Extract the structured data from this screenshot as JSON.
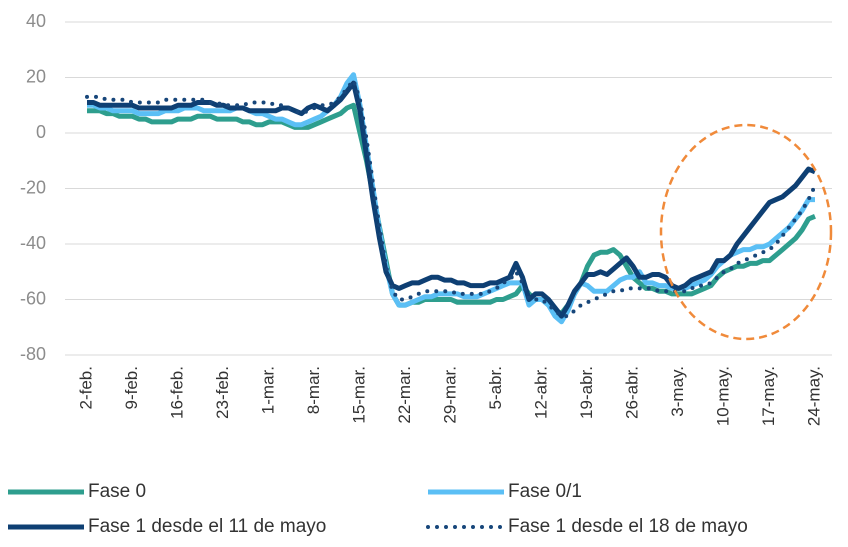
{
  "chart_data": {
    "type": "line",
    "categories": [
      "2-feb.",
      null,
      null,
      null,
      null,
      null,
      null,
      "9-feb.",
      null,
      null,
      null,
      null,
      null,
      null,
      "16-feb.",
      null,
      null,
      null,
      null,
      null,
      null,
      "23-feb.",
      null,
      null,
      null,
      null,
      null,
      null,
      "1-mar.",
      null,
      null,
      null,
      null,
      null,
      null,
      "8-mar.",
      null,
      null,
      null,
      null,
      null,
      null,
      "15-mar.",
      null,
      null,
      null,
      null,
      null,
      null,
      "22-mar.",
      null,
      null,
      null,
      null,
      null,
      null,
      "29-mar.",
      null,
      null,
      null,
      null,
      null,
      null,
      "5-abr.",
      null,
      null,
      null,
      null,
      null,
      null,
      "12-abr.",
      null,
      null,
      null,
      null,
      null,
      null,
      "19-abr.",
      null,
      null,
      null,
      null,
      null,
      null,
      "26-abr.",
      null,
      null,
      null,
      null,
      null,
      null,
      "3-may.",
      null,
      null,
      null,
      null,
      null,
      null,
      "10-may.",
      null,
      null,
      null,
      null,
      null,
      null,
      "17-may.",
      null,
      null,
      null,
      null,
      null,
      null,
      "24-may."
    ],
    "series": [
      {
        "name": "Fase 0",
        "color": "#2e9e8e",
        "style": "solid",
        "values": [
          8,
          8,
          8,
          7,
          7,
          6,
          6,
          6,
          5,
          5,
          4,
          4,
          4,
          4,
          5,
          5,
          5,
          6,
          6,
          6,
          5,
          5,
          5,
          5,
          4,
          4,
          3,
          3,
          4,
          4,
          4,
          3,
          2,
          2,
          2,
          3,
          4,
          5,
          6,
          7,
          9,
          10,
          0,
          -10,
          -22,
          -34,
          -46,
          -58,
          -62,
          -62,
          -61,
          -61,
          -60,
          -60,
          -60,
          -60,
          -60,
          -61,
          -61,
          -61,
          -61,
          -61,
          -61,
          -60,
          -60,
          -59,
          -58,
          -55,
          -58,
          -60,
          -60,
          -62,
          -64,
          -65,
          -62,
          -58,
          -54,
          -48,
          -44,
          -43,
          -43,
          -42,
          -44,
          -48,
          -52,
          -54,
          -56,
          -56,
          -57,
          -57,
          -58,
          -58,
          -58,
          -58,
          -57,
          -56,
          -55,
          -52,
          -50,
          -49,
          -48,
          -48,
          -47,
          -47,
          -46,
          -46,
          -44,
          -42,
          -40,
          -38,
          -35,
          -31,
          -30
        ]
      },
      {
        "name": "Fase 0/1",
        "color": "#5bbff5",
        "style": "solid",
        "values": [
          10,
          10,
          9,
          9,
          8,
          8,
          8,
          8,
          7,
          7,
          7,
          7,
          8,
          8,
          8,
          9,
          9,
          9,
          8,
          8,
          8,
          8,
          8,
          9,
          9,
          8,
          7,
          7,
          6,
          5,
          5,
          4,
          3,
          3,
          4,
          5,
          6,
          8,
          10,
          13,
          18,
          21,
          10,
          -5,
          -20,
          -35,
          -48,
          -58,
          -62,
          -62,
          -61,
          -60,
          -59,
          -59,
          -58,
          -58,
          -58,
          -58,
          -59,
          -59,
          -59,
          -58,
          -57,
          -56,
          -55,
          -54,
          -54,
          -54,
          -62,
          -60,
          -60,
          -62,
          -66,
          -68,
          -64,
          -58,
          -54,
          -55,
          -57,
          -57,
          -57,
          -55,
          -53,
          -52,
          -52,
          -50,
          -54,
          -54,
          -55,
          -55,
          -56,
          -56,
          -56,
          -55,
          -54,
          -53,
          -51,
          -48,
          -46,
          -44,
          -43,
          -42,
          -42,
          -41,
          -41,
          -40,
          -38,
          -36,
          -34,
          -31,
          -28,
          -24,
          -24
        ]
      },
      {
        "name": "Fase 1 desde el 11 de mayo",
        "color": "#0e3f73",
        "style": "solid",
        "values": [
          11,
          11,
          10,
          10,
          10,
          10,
          10,
          10,
          9,
          9,
          9,
          9,
          9,
          9,
          10,
          10,
          10,
          11,
          11,
          11,
          10,
          10,
          9,
          9,
          9,
          8,
          8,
          8,
          8,
          8,
          9,
          9,
          8,
          7,
          9,
          10,
          9,
          8,
          10,
          12,
          15,
          18,
          8,
          -8,
          -24,
          -38,
          -50,
          -55,
          -56,
          -55,
          -54,
          -54,
          -53,
          -52,
          -52,
          -53,
          -53,
          -54,
          -54,
          -55,
          -55,
          -55,
          -54,
          -54,
          -53,
          -52,
          -47,
          -52,
          -60,
          -58,
          -58,
          -60,
          -63,
          -66,
          -62,
          -57,
          -54,
          -51,
          -51,
          -50,
          -51,
          -49,
          -47,
          -45,
          -48,
          -52,
          -52,
          -51,
          -51,
          -52,
          -55,
          -56,
          -55,
          -53,
          -52,
          -51,
          -50,
          -46,
          -46,
          -44,
          -40,
          -37,
          -34,
          -31,
          -28,
          -25,
          -24,
          -23,
          -21,
          -19,
          -16,
          -13,
          -14
        ]
      },
      {
        "name": "Fase 1 desde el 18 de mayo",
        "color": "#17467a",
        "style": "dotted",
        "values": [
          13,
          13,
          13,
          12,
          12,
          12,
          12,
          11,
          11,
          11,
          11,
          11,
          12,
          12,
          12,
          12,
          12,
          12,
          12,
          11,
          11,
          10,
          10,
          10,
          10,
          11,
          11,
          11,
          11,
          10,
          10,
          9,
          8,
          7,
          8,
          9,
          10,
          10,
          11,
          13,
          16,
          19,
          12,
          -2,
          -18,
          -34,
          -48,
          -57,
          -60,
          -60,
          -59,
          -58,
          -57,
          -57,
          -57,
          -57,
          -57,
          -58,
          -58,
          -58,
          -58,
          -58,
          -57,
          -56,
          -54,
          -53,
          -50,
          -54,
          -60,
          -60,
          -60,
          -62,
          -64,
          -66,
          -66,
          -64,
          -62,
          -61,
          -60,
          -59,
          -58,
          -57,
          -57,
          -56,
          -56,
          -56,
          -56,
          -56,
          -57,
          -57,
          -57,
          -57,
          -57,
          -56,
          -55,
          -55,
          -54,
          -52,
          -50,
          -49,
          -47,
          -46,
          -45,
          -44,
          -43,
          -42,
          -40,
          -37,
          -34,
          -31,
          -28,
          -24,
          -19
        ]
      }
    ],
    "ylim": [
      -80,
      40
    ],
    "yticks": [
      -80,
      -60,
      -40,
      -20,
      0,
      20,
      40
    ],
    "grid": true,
    "legend": "bottom"
  }
}
